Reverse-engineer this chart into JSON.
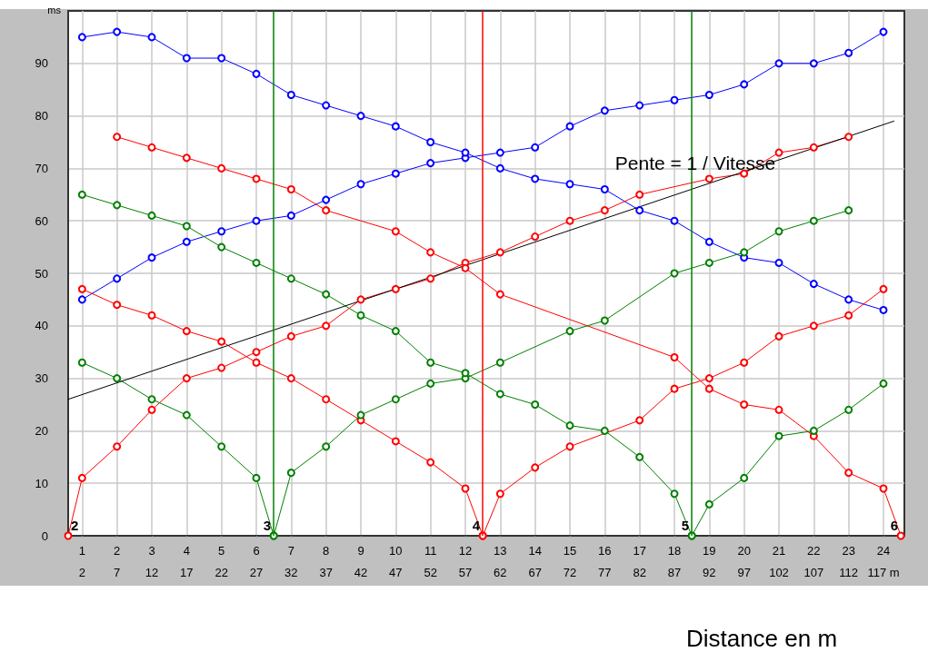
{
  "chart_data": {
    "type": "line",
    "ylabel": "ms",
    "xlabel": "Distance en m",
    "xlim": [
      0.6,
      24.6
    ],
    "xticks": [
      1,
      2,
      3,
      4,
      5,
      6,
      7,
      8,
      9,
      10,
      11,
      12,
      13,
      14,
      15,
      16,
      17,
      18,
      19,
      20,
      21,
      22,
      23,
      24
    ],
    "x2lim": [
      0,
      120
    ],
    "x2ticks": [
      2,
      7,
      12,
      17,
      22,
      27,
      32,
      37,
      42,
      47,
      52,
      57,
      62,
      67,
      72,
      77,
      82,
      87,
      92,
      97,
      102,
      107,
      112,
      {
        "value": 117,
        "label": "117 m"
      }
    ],
    "ylim": [
      0,
      100
    ],
    "yticks": [
      0,
      10,
      20,
      30,
      40,
      50,
      60,
      70,
      80,
      90
    ],
    "grid": true,
    "marker": "circle",
    "series": [
      {
        "color": "#0000ff",
        "x": [
          1,
          2,
          3,
          4,
          5,
          6,
          7,
          8,
          9,
          10,
          11,
          12,
          13,
          14,
          15,
          16,
          17,
          18,
          19,
          20,
          21,
          22,
          23,
          24
        ],
        "values": [
          45,
          49,
          53,
          56,
          58,
          60,
          61,
          64,
          67,
          69,
          71,
          72,
          73,
          74,
          78,
          81,
          82,
          83,
          84,
          86,
          90,
          90,
          92,
          96
        ]
      },
      {
        "color": "#0000ff",
        "x": [
          1,
          2,
          3,
          4,
          5,
          6,
          7,
          8,
          9,
          10,
          11,
          12,
          13,
          14,
          15,
          16,
          17,
          18,
          19,
          20,
          21,
          22,
          23,
          24
        ],
        "values": [
          95,
          96,
          95,
          91,
          91,
          88,
          84,
          82,
          80,
          78,
          75,
          73,
          70,
          68,
          67,
          66,
          62,
          60,
          56,
          53,
          52,
          48,
          45,
          43
        ]
      },
      {
        "color": "#ff0000",
        "x": [
          0.6,
          1,
          2,
          3,
          4,
          5,
          6,
          7,
          8,
          9,
          10,
          11,
          12,
          13,
          14,
          15,
          16,
          17,
          19,
          20,
          21,
          22,
          23
        ],
        "values": [
          0,
          11,
          17,
          24,
          30,
          32,
          35,
          38,
          40,
          45,
          47,
          49,
          52,
          54,
          57,
          60,
          62,
          65,
          68,
          69,
          73,
          74,
          76
        ]
      },
      {
        "color": "#ff0000",
        "x": [
          1,
          2,
          3,
          4,
          5,
          6,
          7,
          8,
          9,
          10,
          11,
          12,
          12.5
        ],
        "values": [
          47,
          44,
          42,
          39,
          37,
          33,
          30,
          26,
          22,
          18,
          14,
          9,
          0
        ]
      },
      {
        "color": "#ff0000",
        "x": [
          12.5,
          13,
          14,
          15,
          17,
          18,
          19,
          20,
          21,
          22,
          23,
          24
        ],
        "values": [
          0,
          8,
          13,
          17,
          22,
          28,
          30,
          33,
          38,
          40,
          42,
          47
        ]
      },
      {
        "color": "#ff0000",
        "x": [
          2,
          3,
          4,
          5,
          6,
          7,
          8,
          10,
          11,
          12,
          13,
          18,
          19,
          20,
          21,
          22,
          23,
          24,
          24.5
        ],
        "values": [
          76,
          74,
          72,
          70,
          68,
          66,
          62,
          58,
          54,
          51,
          46,
          34,
          28,
          25,
          24,
          19,
          12,
          9,
          0
        ]
      },
      {
        "color": "#008000",
        "x": [
          1,
          2,
          3,
          4,
          5,
          6,
          6.5
        ],
        "values": [
          33,
          30,
          26,
          23,
          17,
          11,
          0
        ]
      },
      {
        "color": "#008000",
        "x": [
          6.5,
          7,
          8,
          9,
          10,
          11,
          12,
          13,
          15,
          16,
          18,
          19,
          20,
          21,
          22,
          23
        ],
        "values": [
          0,
          12,
          17,
          23,
          26,
          29,
          30,
          33,
          39,
          41,
          50,
          52,
          54,
          58,
          60,
          62
        ]
      },
      {
        "color": "#008000",
        "x": [
          1,
          2,
          3,
          4,
          5,
          6,
          7,
          8,
          9,
          10,
          11,
          12,
          13,
          14,
          15,
          16,
          17,
          18,
          18.5
        ],
        "values": [
          65,
          63,
          61,
          59,
          55,
          52,
          49,
          46,
          42,
          39,
          33,
          31,
          27,
          25,
          21,
          20,
          15,
          8,
          0
        ]
      },
      {
        "color": "#008000",
        "x": [
          18.5,
          19,
          20,
          21,
          22,
          23,
          24
        ],
        "values": [
          0,
          6,
          11,
          19,
          20,
          24,
          29
        ]
      },
      {
        "color": "#000000",
        "marker": "none",
        "x": [
          0.6,
          24.3
        ],
        "values": [
          26,
          79
        ]
      }
    ],
    "ref_lines": [
      {
        "axis": "x",
        "value": 6.5,
        "color": "#008000"
      },
      {
        "axis": "x",
        "value": 12.5,
        "color": "#ff0000"
      },
      {
        "axis": "x",
        "value": 18.5,
        "color": "#008000"
      }
    ],
    "annotations": [
      {
        "text": "2",
        "x": 0.6,
        "y": 0
      },
      {
        "text": "3",
        "x": 6.5,
        "y": 0
      },
      {
        "text": "4",
        "x": 12.5,
        "y": 0
      },
      {
        "text": "5",
        "x": 18.5,
        "y": 0
      },
      {
        "text": "6",
        "x": 24.5,
        "y": 0
      },
      {
        "text": "Pente = 1 / Vitesse",
        "x": 18.6,
        "y": 71
      }
    ]
  }
}
